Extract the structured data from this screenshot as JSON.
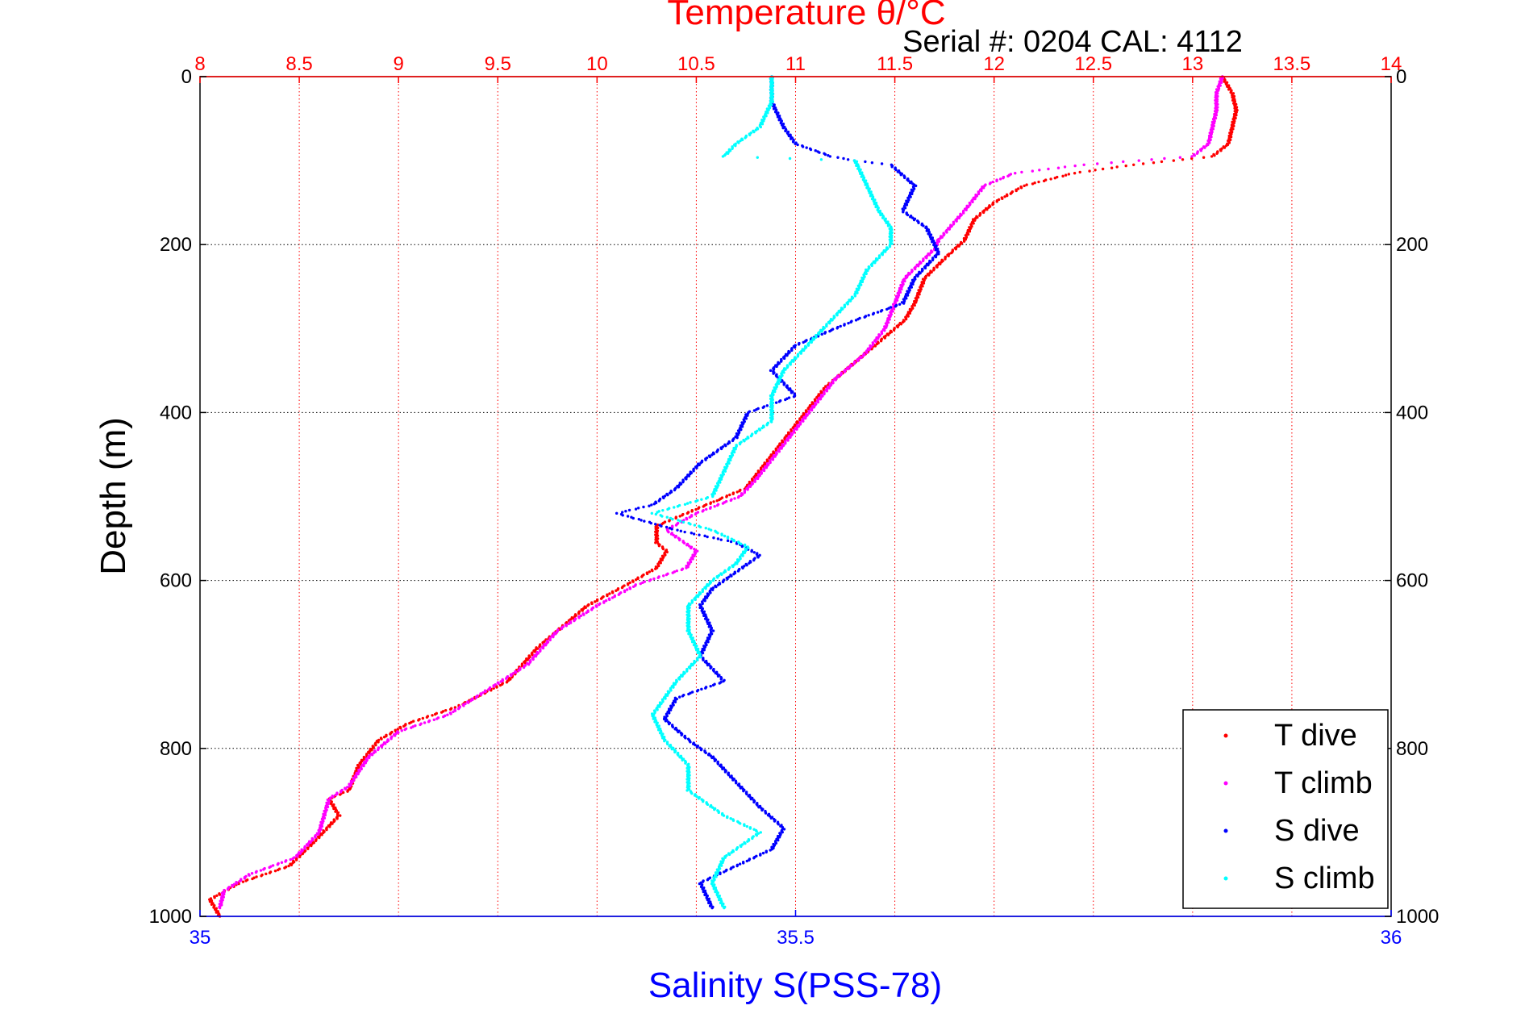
{
  "chart_data": {
    "type": "scatter",
    "title": "Temperature θ/°C",
    "subtitle": "Serial #: 0204  CAL: 4112",
    "xlabel_bottom": "Salinity S(PSS-78)",
    "ylabel": "Depth (m)",
    "x_top": {
      "label": "Temperature θ/°C",
      "range": [
        8,
        14
      ],
      "ticks": [
        "8",
        "8.5",
        "9",
        "9.5",
        "10",
        "10.5",
        "11",
        "11.5",
        "12",
        "12.5",
        "13",
        "13.5",
        "14"
      ]
    },
    "x_bottom": {
      "label": "Salinity S(PSS-78)",
      "range": [
        35,
        36
      ],
      "ticks": [
        "35",
        "35.5",
        "36"
      ]
    },
    "y": {
      "range": [
        0,
        1000
      ],
      "reversed": true,
      "ticks": [
        "0",
        "200",
        "400",
        "600",
        "800",
        "1000"
      ]
    },
    "grid": true,
    "legend_position": "bottom-right",
    "colors": {
      "t_dive": "#ff0000",
      "t_climb": "#ff00ff",
      "s_dive": "#0000ff",
      "s_climb": "#00ffff"
    },
    "series": [
      {
        "name": "T dive",
        "axis": "temperature",
        "color": "#ff0000",
        "points": [
          [
            13.15,
            0
          ],
          [
            13.2,
            20
          ],
          [
            13.22,
            40
          ],
          [
            13.2,
            60
          ],
          [
            13.18,
            80
          ],
          [
            13.1,
            95
          ],
          [
            12.7,
            105
          ],
          [
            12.4,
            115
          ],
          [
            12.15,
            130
          ],
          [
            12.0,
            150
          ],
          [
            11.9,
            170
          ],
          [
            11.85,
            195
          ],
          [
            11.78,
            210
          ],
          [
            11.65,
            240
          ],
          [
            11.6,
            270
          ],
          [
            11.55,
            290
          ],
          [
            11.45,
            310
          ],
          [
            11.3,
            340
          ],
          [
            11.15,
            370
          ],
          [
            11.05,
            400
          ],
          [
            10.95,
            430
          ],
          [
            10.85,
            460
          ],
          [
            10.75,
            490
          ],
          [
            10.6,
            505
          ],
          [
            10.45,
            520
          ],
          [
            10.3,
            535
          ],
          [
            10.3,
            555
          ],
          [
            10.35,
            565
          ],
          [
            10.3,
            585
          ],
          [
            10.15,
            605
          ],
          [
            9.95,
            630
          ],
          [
            9.85,
            650
          ],
          [
            9.7,
            680
          ],
          [
            9.55,
            720
          ],
          [
            9.3,
            750
          ],
          [
            9.05,
            770
          ],
          [
            8.9,
            790
          ],
          [
            8.8,
            820
          ],
          [
            8.75,
            850
          ],
          [
            8.65,
            860
          ],
          [
            8.7,
            880
          ],
          [
            8.58,
            910
          ],
          [
            8.45,
            940
          ],
          [
            8.2,
            960
          ],
          [
            8.05,
            980
          ],
          [
            8.1,
            1000
          ]
        ]
      },
      {
        "name": "T climb",
        "axis": "temperature",
        "color": "#ff00ff",
        "points": [
          [
            13.15,
            0
          ],
          [
            13.12,
            20
          ],
          [
            13.12,
            40
          ],
          [
            13.1,
            60
          ],
          [
            13.08,
            80
          ],
          [
            13.0,
            95
          ],
          [
            12.45,
            105
          ],
          [
            12.1,
            115
          ],
          [
            11.95,
            130
          ],
          [
            11.85,
            160
          ],
          [
            11.72,
            195
          ],
          [
            11.7,
            205
          ],
          [
            11.55,
            240
          ],
          [
            11.5,
            270
          ],
          [
            11.45,
            300
          ],
          [
            11.35,
            330
          ],
          [
            11.2,
            360
          ],
          [
            11.1,
            390
          ],
          [
            11.0,
            420
          ],
          [
            10.9,
            450
          ],
          [
            10.8,
            480
          ],
          [
            10.72,
            500
          ],
          [
            10.5,
            520
          ],
          [
            10.35,
            540
          ],
          [
            10.5,
            565
          ],
          [
            10.45,
            585
          ],
          [
            10.2,
            605
          ],
          [
            10.0,
            630
          ],
          [
            9.8,
            660
          ],
          [
            9.65,
            700
          ],
          [
            9.45,
            730
          ],
          [
            9.25,
            760
          ],
          [
            9.0,
            780
          ],
          [
            8.85,
            810
          ],
          [
            8.75,
            845
          ],
          [
            8.65,
            860
          ],
          [
            8.6,
            900
          ],
          [
            8.48,
            930
          ],
          [
            8.25,
            950
          ],
          [
            8.12,
            970
          ],
          [
            8.1,
            990
          ]
        ]
      },
      {
        "name": "S dive",
        "axis": "salinity",
        "color": "#0000ff",
        "points": [
          [
            35.48,
            0
          ],
          [
            35.48,
            30
          ],
          [
            35.49,
            60
          ],
          [
            35.5,
            80
          ],
          [
            35.53,
            95
          ],
          [
            35.55,
            100
          ],
          [
            35.58,
            105
          ],
          [
            35.6,
            130
          ],
          [
            35.59,
            160
          ],
          [
            35.61,
            180
          ],
          [
            35.62,
            210
          ],
          [
            35.6,
            240
          ],
          [
            35.59,
            270
          ],
          [
            35.55,
            290
          ],
          [
            35.5,
            320
          ],
          [
            35.48,
            350
          ],
          [
            35.5,
            380
          ],
          [
            35.46,
            400
          ],
          [
            35.45,
            430
          ],
          [
            35.42,
            460
          ],
          [
            35.4,
            490
          ],
          [
            35.38,
            510
          ],
          [
            35.35,
            520
          ],
          [
            35.4,
            540
          ],
          [
            35.45,
            555
          ],
          [
            35.47,
            570
          ],
          [
            35.45,
            590
          ],
          [
            35.43,
            610
          ],
          [
            35.42,
            630
          ],
          [
            35.43,
            660
          ],
          [
            35.42,
            690
          ],
          [
            35.44,
            720
          ],
          [
            35.4,
            740
          ],
          [
            35.39,
            765
          ],
          [
            35.41,
            790
          ],
          [
            35.43,
            810
          ],
          [
            35.45,
            840
          ],
          [
            35.47,
            870
          ],
          [
            35.49,
            895
          ],
          [
            35.48,
            920
          ],
          [
            35.45,
            940
          ],
          [
            35.42,
            960
          ],
          [
            35.43,
            990
          ]
        ]
      },
      {
        "name": "S climb",
        "axis": "salinity",
        "color": "#00ffff",
        "points": [
          [
            35.48,
            0
          ],
          [
            35.48,
            30
          ],
          [
            35.47,
            60
          ],
          [
            35.45,
            80
          ],
          [
            35.44,
            95
          ],
          [
            35.55,
            100
          ],
          [
            35.56,
            130
          ],
          [
            35.57,
            160
          ],
          [
            35.58,
            180
          ],
          [
            35.58,
            200
          ],
          [
            35.56,
            230
          ],
          [
            35.55,
            260
          ],
          [
            35.53,
            290
          ],
          [
            35.51,
            320
          ],
          [
            35.49,
            350
          ],
          [
            35.48,
            380
          ],
          [
            35.48,
            410
          ],
          [
            35.45,
            440
          ],
          [
            35.44,
            470
          ],
          [
            35.43,
            500
          ],
          [
            35.38,
            520
          ],
          [
            35.43,
            540
          ],
          [
            35.46,
            560
          ],
          [
            35.45,
            580
          ],
          [
            35.43,
            600
          ],
          [
            35.41,
            630
          ],
          [
            35.41,
            660
          ],
          [
            35.42,
            690
          ],
          [
            35.4,
            720
          ],
          [
            35.38,
            760
          ],
          [
            35.39,
            790
          ],
          [
            35.41,
            820
          ],
          [
            35.41,
            850
          ],
          [
            35.44,
            880
          ],
          [
            35.47,
            900
          ],
          [
            35.44,
            930
          ],
          [
            35.43,
            960
          ],
          [
            35.44,
            990
          ]
        ]
      }
    ]
  },
  "legend": {
    "items": [
      {
        "label": "T dive",
        "color": "#ff0000"
      },
      {
        "label": "T climb",
        "color": "#ff00ff"
      },
      {
        "label": "S dive",
        "color": "#0000ff"
      },
      {
        "label": "S climb",
        "color": "#00ffff"
      }
    ]
  }
}
